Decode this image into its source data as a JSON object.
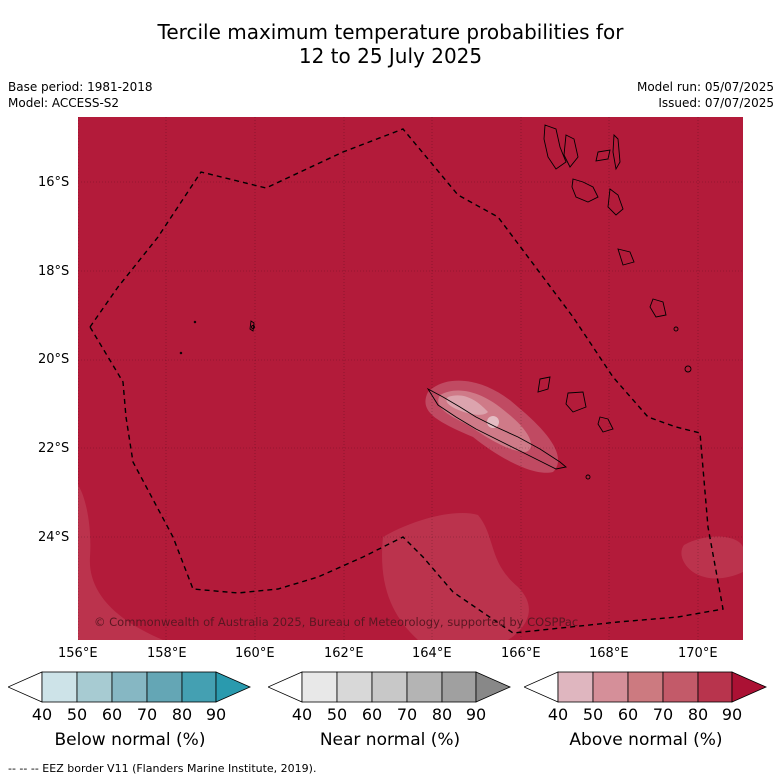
{
  "title": {
    "line1": "Tercile maximum temperature probabilities for",
    "line2": "12 to 25 July 2025"
  },
  "meta": {
    "base_period": "Base period: 1981-2018",
    "model": "Model: ACCESS-S2",
    "model_run": "Model run: 05/07/2025",
    "issued": "Issued: 07/07/2025"
  },
  "axes": {
    "lat_labels": [
      "16°S",
      "18°S",
      "20°S",
      "22°S",
      "24°S"
    ],
    "lon_labels": [
      "156°E",
      "158°E",
      "160°E",
      "162°E",
      "164°E",
      "166°E",
      "168°E",
      "170°E"
    ]
  },
  "map": {
    "background_color": "#b31b3a",
    "copyright": "© Commonwealth of Australia 2025, Bureau of Meteorology, supported by COSPPac"
  },
  "legend": {
    "ticks": [
      "40",
      "50",
      "60",
      "70",
      "80",
      "90"
    ],
    "bars": [
      {
        "label": "Below normal (%)",
        "colors": [
          "#ffffff",
          "#cde3e8",
          "#a7cbd2",
          "#86b7c3",
          "#64a6b5",
          "#44a0b2",
          "#2a9aae"
        ]
      },
      {
        "label": "Near normal (%)",
        "colors": [
          "#ffffff",
          "#e8e8e8",
          "#d8d8d8",
          "#c8c8c8",
          "#b4b4b4",
          "#a0a0a0",
          "#888888"
        ]
      },
      {
        "label": "Above normal (%)",
        "colors": [
          "#ffffff",
          "#dfb6bf",
          "#d58f99",
          "#cc7a80",
          "#c35a69",
          "#b8344d",
          "#ab1134"
        ]
      }
    ]
  },
  "footnote": "--  --  -- EEZ border V11 (Flanders Marine Institute, 2019)."
}
